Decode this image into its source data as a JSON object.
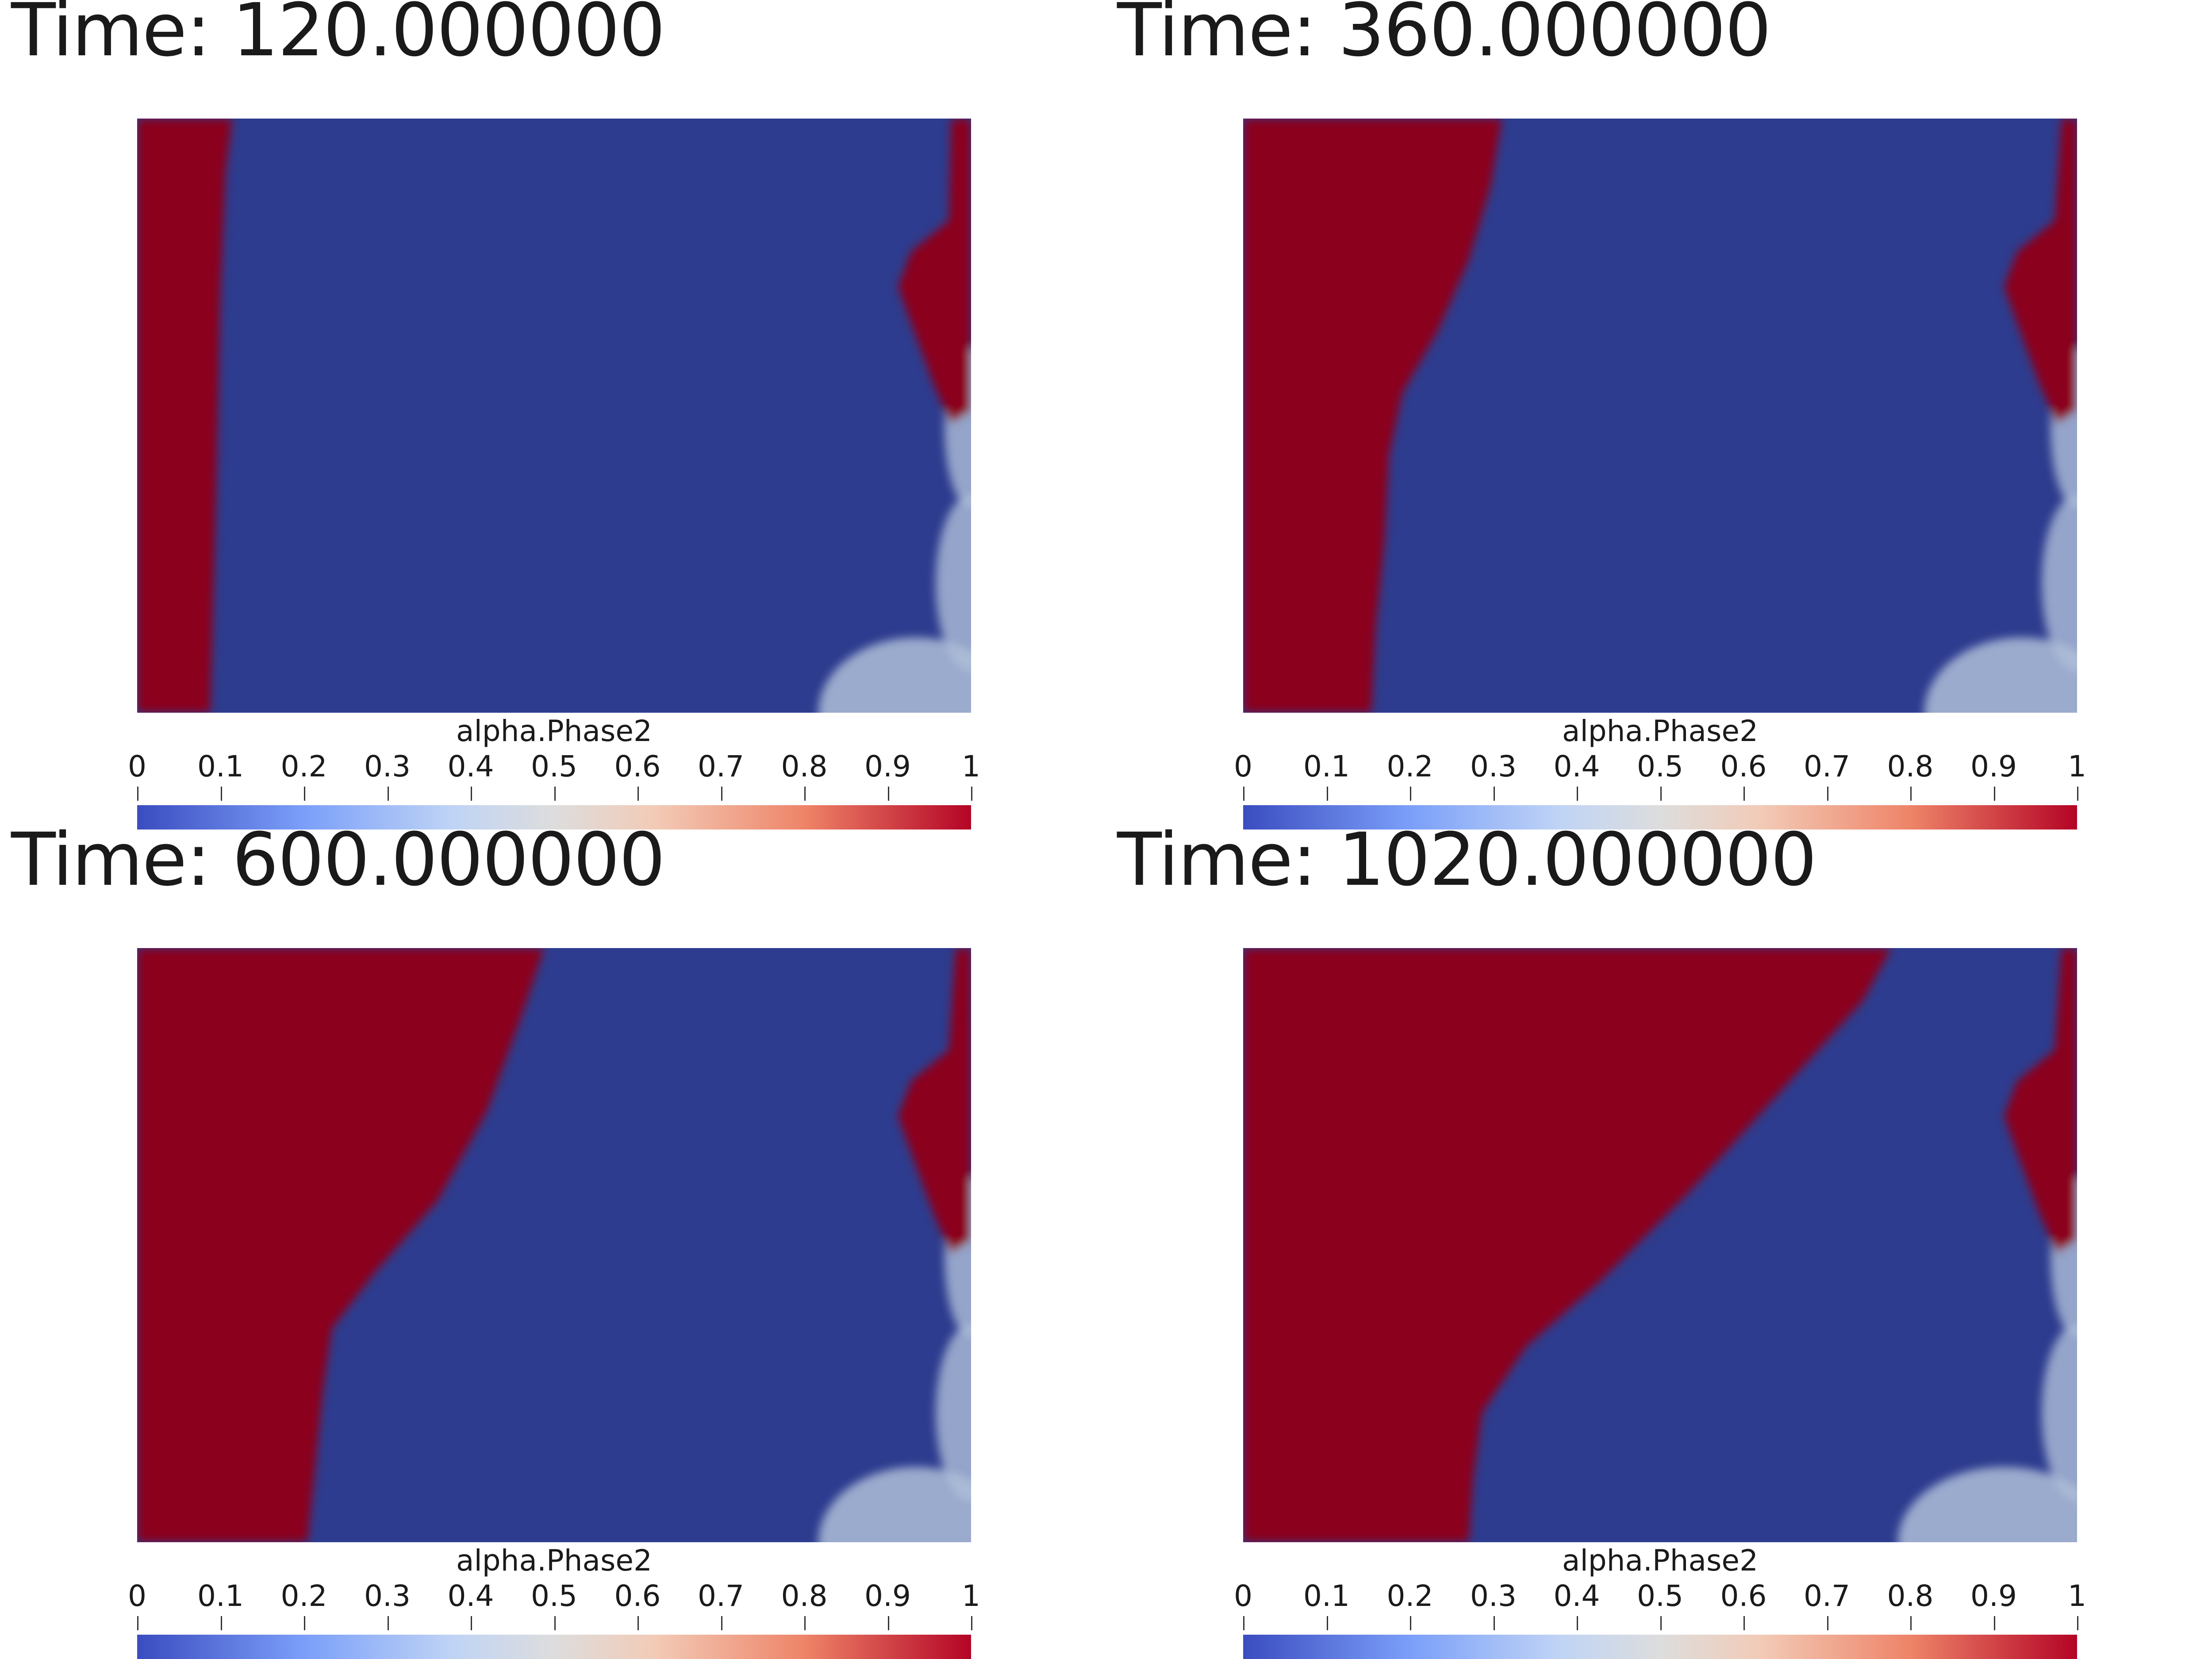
{
  "panels": [
    {
      "time_label": "Time: 120.000000",
      "colorbar_title": "alpha.Phase2"
    },
    {
      "time_label": "Time: 360.000000",
      "colorbar_title": "alpha.Phase2"
    },
    {
      "time_label": "Time: 600.000000",
      "colorbar_title": "alpha.Phase2"
    },
    {
      "time_label": "Time: 1020.000000",
      "colorbar_title": "alpha.Phase2"
    }
  ],
  "colorbar": {
    "ticks": [
      "0",
      "0.1",
      "0.2",
      "0.3",
      "0.4",
      "0.5",
      "0.6",
      "0.7",
      "0.8",
      "0.9",
      "1"
    ],
    "colors": {
      "low": "#3b4cc0",
      "mid": "#dddddd",
      "high": "#b40426"
    }
  },
  "field_colors": {
    "phase_high": "#8b001e",
    "phase_low": "#2e3c8f",
    "mixed": "#aebed8"
  }
}
